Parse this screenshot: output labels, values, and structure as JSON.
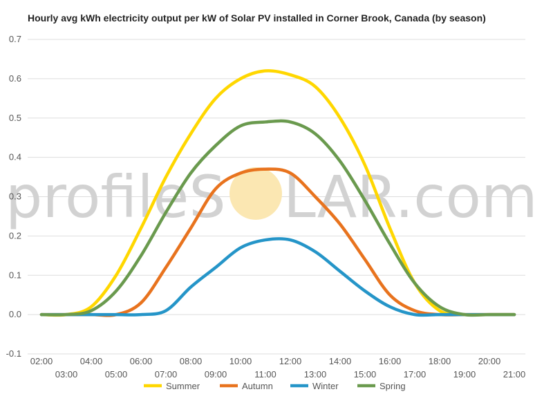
{
  "chart_data": {
    "type": "line",
    "title": "Hourly avg kWh electricity output per kW of Solar PV installed in Corner Brook, Canada (by season)",
    "xlabel": "",
    "ylabel": "",
    "categories": [
      "02:00",
      "03:00",
      "04:00",
      "05:00",
      "06:00",
      "07:00",
      "08:00",
      "09:00",
      "10:00",
      "11:00",
      "12:00",
      "13:00",
      "14:00",
      "15:00",
      "16:00",
      "17:00",
      "18:00",
      "19:00",
      "20:00",
      "21:00"
    ],
    "ylim": [
      -0.1,
      0.7
    ],
    "yticks": [
      "-0.1",
      "0.0",
      "0.1",
      "0.2",
      "0.3",
      "0.4",
      "0.5",
      "0.6",
      "0.7"
    ],
    "grid": true,
    "legend_position": "bottom",
    "series": [
      {
        "name": "Summer",
        "color": "#FFD700",
        "values": [
          0.0,
          0.0,
          0.02,
          0.1,
          0.22,
          0.35,
          0.46,
          0.55,
          0.6,
          0.62,
          0.61,
          0.58,
          0.5,
          0.38,
          0.22,
          0.08,
          0.01,
          0.0,
          0.0,
          0.0
        ]
      },
      {
        "name": "Autumn",
        "color": "#E8731E",
        "values": [
          0.0,
          0.0,
          0.0,
          0.0,
          0.03,
          0.12,
          0.22,
          0.32,
          0.36,
          0.37,
          0.36,
          0.3,
          0.23,
          0.14,
          0.05,
          0.01,
          0.0,
          0.0,
          0.0,
          0.0
        ]
      },
      {
        "name": "Winter",
        "color": "#2595C8",
        "values": [
          0.0,
          0.0,
          0.0,
          0.0,
          0.0,
          0.01,
          0.07,
          0.12,
          0.17,
          0.19,
          0.19,
          0.16,
          0.11,
          0.06,
          0.02,
          0.0,
          0.0,
          0.0,
          0.0,
          0.0
        ]
      },
      {
        "name": "Spring",
        "color": "#6A9A4E",
        "values": [
          0.0,
          0.0,
          0.01,
          0.06,
          0.15,
          0.26,
          0.36,
          0.43,
          0.48,
          0.49,
          0.49,
          0.46,
          0.39,
          0.29,
          0.18,
          0.08,
          0.02,
          0.0,
          0.0,
          0.0
        ]
      }
    ]
  },
  "watermark": {
    "text_before": "profileS",
    "text_after": "LAR.com",
    "sun_color": "#FBE7B2"
  }
}
